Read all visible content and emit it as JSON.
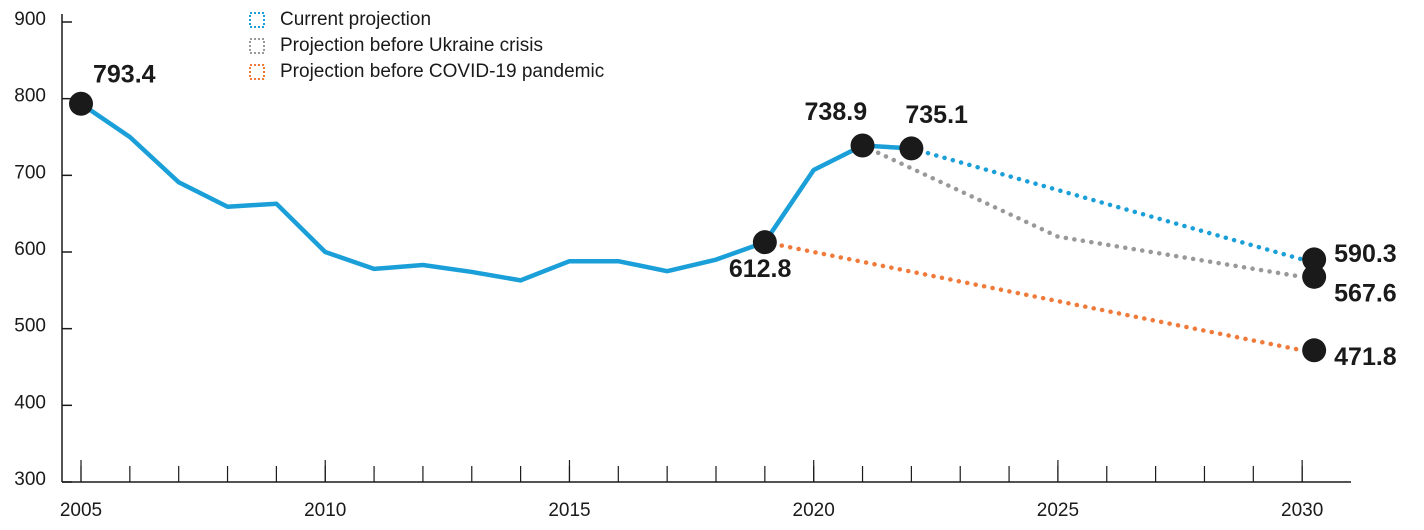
{
  "chart_data": {
    "type": "line",
    "xlim": [
      2005,
      2031
    ],
    "ylim": [
      300,
      900
    ],
    "xticks": [
      2005,
      2010,
      2015,
      2020,
      2025,
      2030
    ],
    "xminor_ticks": [
      2005,
      2006,
      2007,
      2008,
      2009,
      2010,
      2011,
      2012,
      2013,
      2014,
      2015,
      2016,
      2017,
      2018,
      2019,
      2020,
      2021,
      2022,
      2023,
      2024,
      2025,
      2026,
      2027,
      2028,
      2029,
      2030
    ],
    "yticks": [
      300,
      400,
      500,
      600,
      700,
      800,
      900
    ],
    "legend": "top-left",
    "series": [
      {
        "color": "#1a9fd9",
        "style": "solid",
        "x": [
          2005,
          2006,
          2007,
          2008,
          2009,
          2010,
          2011,
          2012,
          2013,
          2014,
          2015,
          2016,
          2017,
          2018,
          2019,
          2020,
          2021,
          2022
        ],
        "values": [
          793.4,
          750,
          691,
          659,
          663,
          600,
          578,
          583,
          574,
          563,
          588,
          588,
          575,
          590,
          612.8,
          707,
          738.9,
          735.1
        ],
        "value_labels": [
          "793.4",
          null,
          null,
          null,
          null,
          null,
          null,
          null,
          null,
          null,
          null,
          null,
          null,
          null,
          "612.8",
          null,
          "738.9",
          "735.1"
        ]
      },
      {
        "name": "Current projection",
        "color": "#1a9fd9",
        "style": "dotted",
        "x": [
          2022,
          2030
        ],
        "values": [
          735.1,
          590.3
        ],
        "value_labels": [
          null,
          "590.3"
        ]
      },
      {
        "name": "Projection before Ukraine crisis",
        "color": "#999999",
        "style": "dotted",
        "x": [
          2021,
          2025,
          2030
        ],
        "values": [
          738.9,
          620,
          567.6
        ],
        "value_labels": [
          null,
          null,
          "567.6"
        ]
      },
      {
        "name": "Projection before COVID-19 pandemic",
        "color": "#f07a3a",
        "style": "dotted",
        "x": [
          2019,
          2030
        ],
        "values": [
          612.8,
          471.8
        ],
        "value_labels": [
          null,
          "471.8"
        ]
      }
    ]
  }
}
